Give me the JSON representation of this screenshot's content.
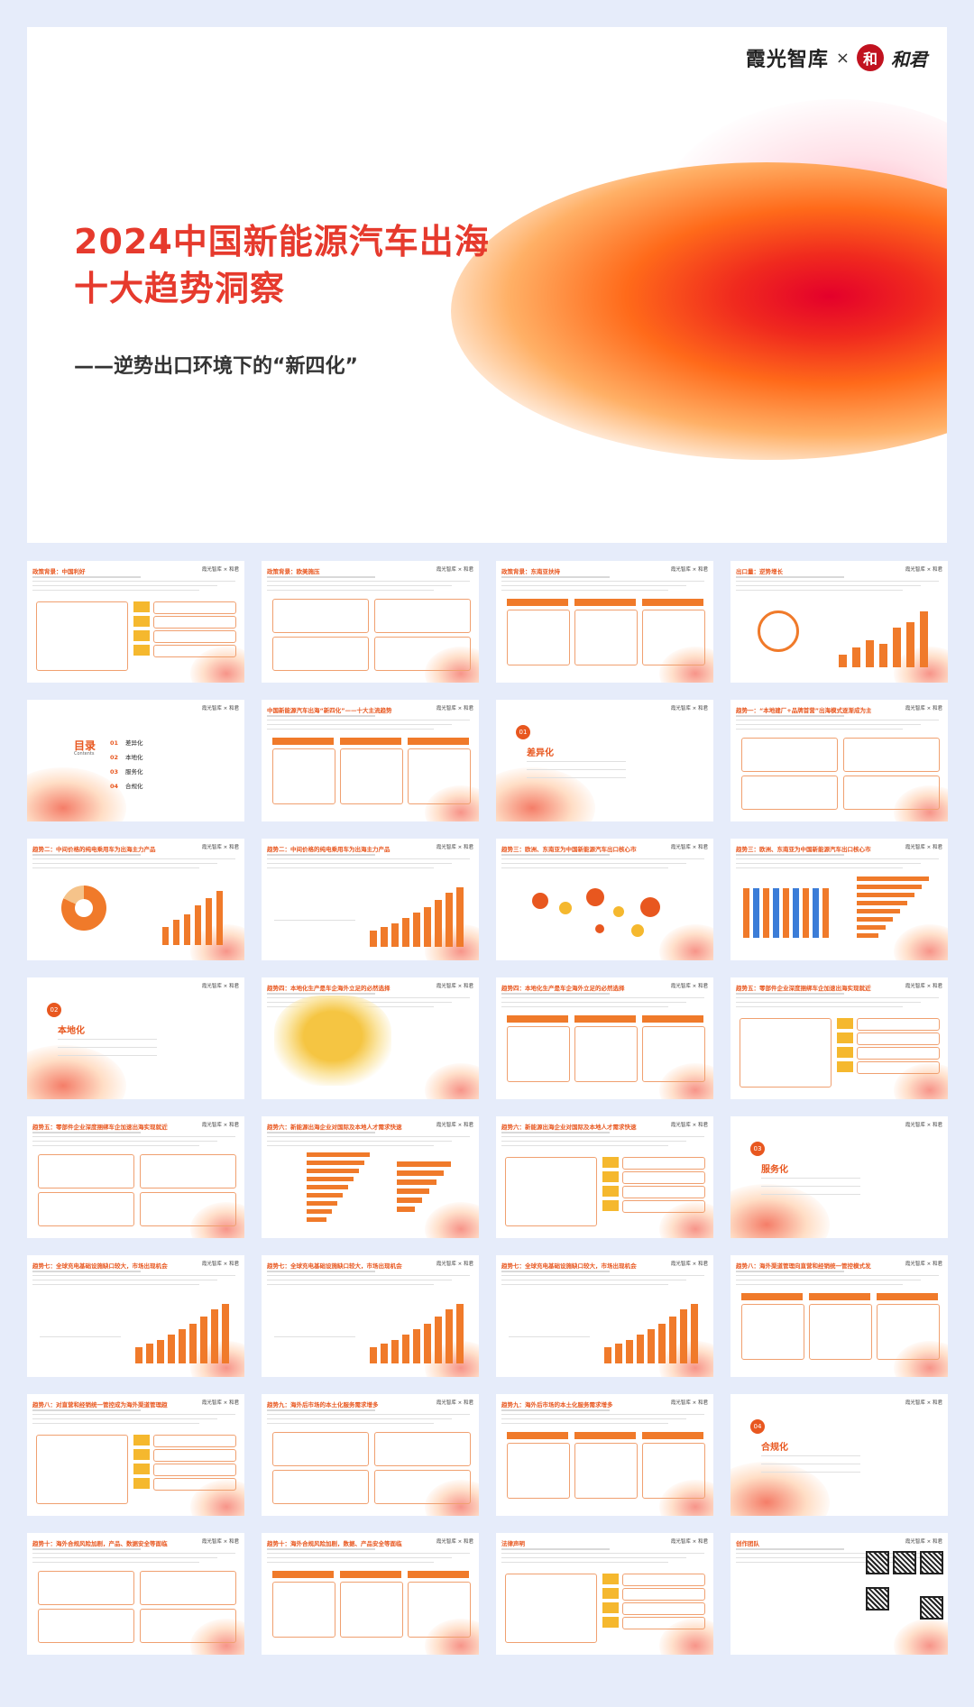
{
  "cover": {
    "brand_name": "霞光智库",
    "brand_sep": "×",
    "partner_seal": "和",
    "partner_name": "和君",
    "title_line1": "2024中国新能源汽车出海",
    "title_line2": "十大趋势洞察",
    "subtitle": "——逆势出口环境下的“新四化”"
  },
  "slides": [
    {
      "header": "政策背景：中国利好"
    },
    {
      "header": "政策背景：欧美施压"
    },
    {
      "header": "政策背景：东南亚扶持"
    },
    {
      "header": "出口量：逆势增长"
    },
    {
      "header": ""
    },
    {
      "header": "中国新能源汽车出海“新四化”——十大主流趋势"
    },
    {
      "header": ""
    },
    {
      "header": "趋势一：“本地建厂+品牌首营”出海模式逐渐成为主流"
    },
    {
      "header": "趋势二：中间价格的纯电乘用车为出海主力产品"
    },
    {
      "header": "趋势二：中间价格的纯电乘用车为出海主力产品"
    },
    {
      "header": "趋势三：欧洲、东南亚为中国新能源汽车出口核心市场"
    },
    {
      "header": "趋势三：欧洲、东南亚为中国新能源汽车出口核心市场"
    },
    {
      "header": ""
    },
    {
      "header": "趋势四：本地化生产是车企海外立足的必然选择"
    },
    {
      "header": "趋势四：本地化生产是车企海外立足的必然选择"
    },
    {
      "header": "趋势五：零部件企业深度捆绑车企加速出海实现就近配套"
    },
    {
      "header": "趋势五：零部件企业深度捆绑车企加速出海实现就近配套"
    },
    {
      "header": "趋势六：新能源出海企业对国际及本地人才需求快速增长"
    },
    {
      "header": "趋势六：新能源出海企业对国际及本地人才需求快速增长"
    },
    {
      "header": ""
    },
    {
      "header": "趋势七：全球充电基础设施缺口较大，市场出现机会拐点"
    },
    {
      "header": "趋势七：全球充电基础设施缺口较大，市场出现机会拐点"
    },
    {
      "header": "趋势七：全球充电基础设施缺口较大，市场出现机会拐点"
    },
    {
      "header": "趋势八：海外渠道管理向直营和经销统一管控模式发展"
    },
    {
      "header": "趋势八：对直营和经销统一管控成为海外渠道管理趋势"
    },
    {
      "header": "趋势九：海外后市场的本土化服务需求增多"
    },
    {
      "header": "趋势九：海外后市场的本土化服务需求增多"
    },
    {
      "header": ""
    },
    {
      "header": "趋势十：海外合规风险加剧，产品、数据安全等面临风险"
    },
    {
      "header": "趋势十：海外合规风险加剧，数据、产品安全等面临风险"
    },
    {
      "header": "法律声明"
    },
    {
      "header": "创作团队"
    }
  ],
  "toc": {
    "title": "目录",
    "subtitle": "Contents",
    "items": [
      {
        "num": "01",
        "label": "差异化"
      },
      {
        "num": "02",
        "label": "本地化"
      },
      {
        "num": "03",
        "label": "服务化"
      },
      {
        "num": "04",
        "label": "合规化"
      }
    ]
  },
  "sections": [
    {
      "num": "01",
      "name": "差异化"
    },
    {
      "num": "02",
      "name": "本地化"
    },
    {
      "num": "03",
      "name": "服务化"
    },
    {
      "num": "04",
      "name": "合规化"
    }
  ],
  "slide_logo": "霞光智库 × 和君",
  "colors": {
    "accent": "#e8571f",
    "title_red": "#e63a2d",
    "bg": "#e6ecfa"
  }
}
